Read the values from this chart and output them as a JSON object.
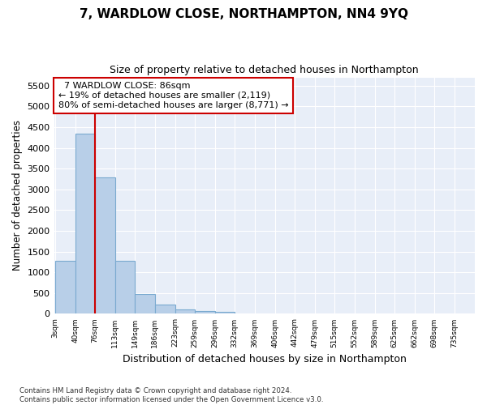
{
  "title1": "7, WARDLOW CLOSE, NORTHAMPTON, NN4 9YQ",
  "title2": "Size of property relative to detached houses in Northampton",
  "xlabel": "Distribution of detached houses by size in Northampton",
  "ylabel": "Number of detached properties",
  "annotation_line1": "  7 WARDLOW CLOSE: 86sqm  ",
  "annotation_line2": "← 19% of detached houses are smaller (2,119)",
  "annotation_line3": "80% of semi-detached houses are larger (8,771) →",
  "footer1": "Contains HM Land Registry data © Crown copyright and database right 2024.",
  "footer2": "Contains public sector information licensed under the Open Government Licence v3.0.",
  "bar_color": "#b8cfe8",
  "bar_edge_color": "#7aaad0",
  "fig_background": "#ffffff",
  "ax_background": "#e8eef8",
  "grid_color": "#ffffff",
  "annotation_box_color": "#ffffff",
  "annotation_box_edge": "#cc0000",
  "red_line_color": "#cc0000",
  "bin_edges": [
    3,
    40,
    76,
    113,
    149,
    186,
    223,
    259,
    296,
    332,
    369,
    406,
    442,
    479,
    515,
    552,
    589,
    625,
    662,
    698,
    735
  ],
  "bin_labels": [
    "3sqm",
    "40sqm",
    "76sqm",
    "113sqm",
    "149sqm",
    "186sqm",
    "223sqm",
    "259sqm",
    "296sqm",
    "332sqm",
    "369sqm",
    "406sqm",
    "442sqm",
    "479sqm",
    "515sqm",
    "552sqm",
    "589sqm",
    "625sqm",
    "662sqm",
    "698sqm",
    "735sqm"
  ],
  "bar_heights": [
    1270,
    4350,
    3280,
    1270,
    475,
    225,
    100,
    60,
    55,
    0,
    0,
    0,
    0,
    0,
    0,
    0,
    0,
    0,
    0,
    0
  ],
  "red_line_x": 76,
  "ylim": [
    0,
    5700
  ],
  "yticks": [
    0,
    500,
    1000,
    1500,
    2000,
    2500,
    3000,
    3500,
    4000,
    4500,
    5000,
    5500
  ]
}
